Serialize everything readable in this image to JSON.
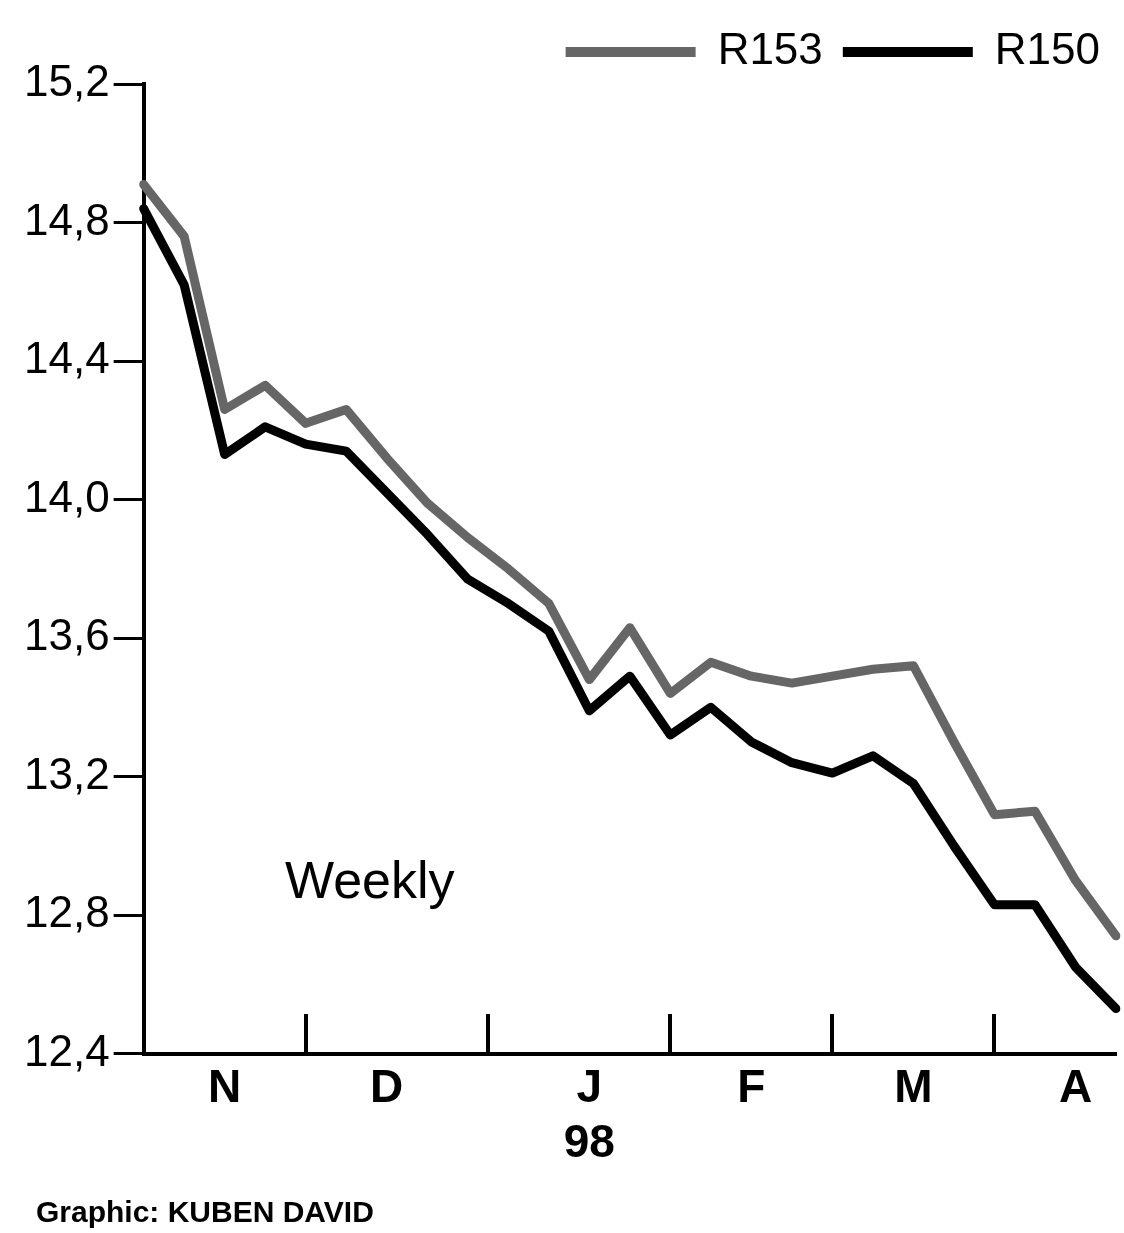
{
  "chart_data": {
    "type": "line",
    "categories": [
      null,
      null,
      "N",
      null,
      null,
      null,
      "D",
      null,
      null,
      null,
      null,
      "J\n98",
      null,
      null,
      null,
      "F",
      null,
      null,
      null,
      "M",
      null,
      null,
      null,
      "A",
      null
    ],
    "ylim": [
      12.4,
      15.2
    ],
    "yticks": [
      {
        "value": 12.4,
        "label": "12,4"
      },
      {
        "value": 12.8,
        "label": "12,8"
      },
      {
        "value": 13.2,
        "label": "13,2"
      },
      {
        "value": 13.6,
        "label": "13,6"
      },
      {
        "value": 14.0,
        "label": "14,0"
      },
      {
        "value": 14.4,
        "label": "14,4"
      },
      {
        "value": 14.8,
        "label": "14,8"
      },
      {
        "value": 15.2,
        "label": "15,2"
      }
    ],
    "series": [
      {
        "name": "R153",
        "color": "#666666",
        "values": [
          14.91,
          14.76,
          14.26,
          14.33,
          14.22,
          14.26,
          14.12,
          13.99,
          13.89,
          13.8,
          13.7,
          13.48,
          13.63,
          13.44,
          13.53,
          13.49,
          13.47,
          13.49,
          13.51,
          13.52,
          13.3,
          13.09,
          13.1,
          12.9,
          12.74
        ]
      },
      {
        "name": "R150",
        "color": "#000000",
        "values": [
          14.84,
          14.62,
          14.13,
          14.21,
          14.16,
          14.14,
          14.02,
          13.9,
          13.77,
          13.7,
          13.62,
          13.39,
          13.49,
          13.32,
          13.4,
          13.3,
          13.24,
          13.21,
          13.26,
          13.18,
          13.0,
          12.83,
          12.83,
          12.65,
          12.53
        ]
      }
    ],
    "legend": "top right",
    "grid": false,
    "marker": "none",
    "line_style": "solid",
    "annotations": [
      "Weekly",
      "Graphic: KUBEN DAVID"
    ]
  }
}
